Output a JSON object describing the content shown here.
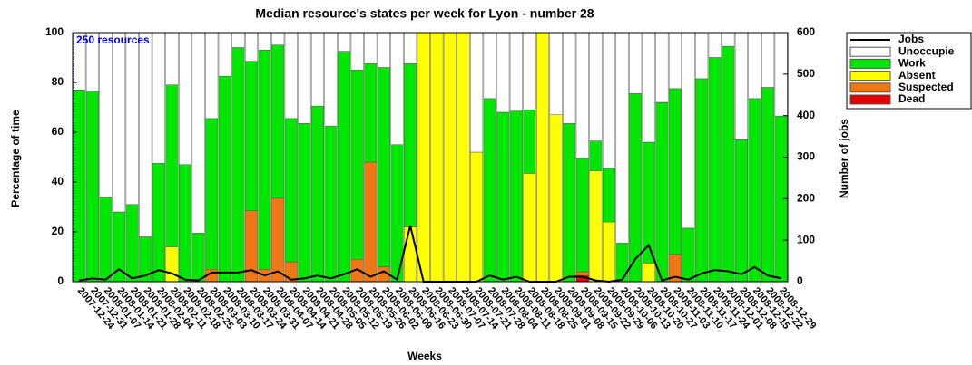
{
  "chart_data": {
    "type": "bar",
    "title": "Median resource's states per week for Lyon - number 28",
    "xlabel": "Weeks",
    "ylabel": "Percentage of time",
    "y2label": "Number of jobs",
    "annotation": "250 resources",
    "categories": [
      "2007-12-24",
      "2007-12-31",
      "2008-01-07",
      "2008-01-14",
      "2008-01-21",
      "2008-01-28",
      "2008-02-04",
      "2008-02-11",
      "2008-02-18",
      "2008-02-25",
      "2008-03-03",
      "2008-03-10",
      "2008-03-17",
      "2008-03-24",
      "2008-03-31",
      "2008-04-07",
      "2008-04-14",
      "2008-04-21",
      "2008-04-28",
      "2008-05-05",
      "2008-05-12",
      "2008-05-19",
      "2008-05-26",
      "2008-06-02",
      "2008-06-09",
      "2008-06-16",
      "2008-06-23",
      "2008-06-30",
      "2008-07-07",
      "2008-07-14",
      "2008-07-21",
      "2008-07-28",
      "2008-08-04",
      "2008-08-11",
      "2008-08-18",
      "2008-08-25",
      "2008-09-01",
      "2008-09-08",
      "2008-09-15",
      "2008-09-22",
      "2008-09-29",
      "2008-10-06",
      "2008-10-13",
      "2008-10-20",
      "2008-10-27",
      "2008-11-03",
      "2008-11-10",
      "2008-11-17",
      "2008-11-24",
      "2008-12-01",
      "2008-12-08",
      "2008-12-15",
      "2008-12-22",
      "2008-12-29"
    ],
    "series": [
      {
        "name": "Jobs",
        "color": "#000000",
        "axis": "y2",
        "values": [
          3,
          8,
          5,
          30,
          8,
          15,
          28,
          20,
          5,
          3,
          22,
          22,
          22,
          28,
          15,
          25,
          5,
          8,
          15,
          8,
          18,
          30,
          12,
          25,
          5,
          135,
          0,
          0,
          0,
          0,
          0,
          15,
          5,
          12,
          0,
          0,
          0,
          12,
          12,
          3,
          0,
          5,
          55,
          88,
          3,
          12,
          5,
          20,
          28,
          25,
          18,
          35,
          15,
          8
        ]
      },
      {
        "name": "Unoccupie",
        "color": "#ffffff",
        "values": [
          23,
          23.5,
          66,
          72,
          69,
          82,
          52.5,
          21,
          53,
          80.5,
          34.5,
          17.5,
          6,
          11.5,
          7,
          5,
          34.5,
          36.5,
          29.5,
          37.5,
          7.5,
          15,
          12.5,
          14,
          45,
          12.5,
          0,
          0,
          0,
          0,
          48,
          26.5,
          32,
          31.5,
          31,
          0,
          33,
          36.5,
          50.5,
          43.5,
          54.5,
          84.5,
          24.5,
          44,
          28,
          22.5,
          78.5,
          18.5,
          10,
          5.5,
          43,
          26.5,
          22,
          33.5
        ]
      },
      {
        "name": "Work",
        "color": "#00e600",
        "values": [
          77,
          76.5,
          34,
          28,
          31,
          18,
          47.5,
          65,
          47,
          19.5,
          60.5,
          82.5,
          94,
          60,
          88,
          61.5,
          57.5,
          63.5,
          70.5,
          62.5,
          92.5,
          76,
          39.5,
          80,
          55,
          65.5,
          0,
          0,
          0,
          0,
          0,
          73.5,
          68,
          68.5,
          25.5,
          0,
          0,
          63.5,
          45.5,
          12,
          21.5,
          15.5,
          75.5,
          48.5,
          72,
          66.5,
          21.5,
          81.5,
          90,
          94.5,
          57,
          73.5,
          78,
          66.5
        ]
      },
      {
        "name": "Absent",
        "color": "#ffff00",
        "values": [
          0,
          0,
          0,
          0,
          0,
          0,
          0,
          14,
          0,
          0,
          0,
          0,
          0,
          0,
          0,
          0,
          0,
          0,
          0,
          0,
          0,
          0,
          0,
          0,
          0,
          22,
          100,
          100,
          100,
          100,
          52,
          0,
          0,
          0,
          43.5,
          100,
          67,
          0,
          0,
          44.5,
          24,
          0,
          0,
          7.5,
          0,
          0,
          0,
          0,
          0,
          0,
          0,
          0,
          0,
          0
        ]
      },
      {
        "name": "Suspected",
        "color": "#f07814",
        "values": [
          0,
          0,
          0,
          0,
          0,
          0,
          0,
          0,
          0,
          0,
          5,
          0,
          0,
          28.5,
          5,
          33.5,
          8,
          0,
          0,
          0,
          0,
          9,
          48,
          6,
          0,
          0,
          0,
          0,
          0,
          0,
          0,
          0,
          0,
          0,
          0,
          0,
          0,
          0,
          1.5,
          0,
          0,
          0,
          0,
          0,
          0,
          11,
          0,
          0,
          0,
          0,
          0,
          0,
          0,
          0
        ]
      },
      {
        "name": "Dead",
        "color": "#e00000",
        "values": [
          0,
          0,
          0,
          0,
          0,
          0,
          0,
          0,
          0,
          0,
          0,
          0,
          0,
          0,
          0,
          0,
          0,
          0,
          0,
          0,
          0,
          0,
          0,
          0,
          0,
          0,
          0,
          0,
          0,
          0,
          0,
          0,
          0,
          0,
          0,
          0,
          0,
          0,
          2.5,
          0,
          0,
          0,
          0,
          0,
          0,
          0,
          0,
          0,
          0,
          0,
          0,
          0,
          0,
          0
        ]
      }
    ],
    "ylim": [
      0,
      100
    ],
    "yticks": [
      0,
      20,
      40,
      60,
      80,
      100
    ],
    "y2lim": [
      0,
      600
    ],
    "y2ticks": [
      0,
      100,
      200,
      300,
      400,
      500,
      600
    ],
    "stacked": true,
    "grid": false,
    "legend": "right"
  }
}
